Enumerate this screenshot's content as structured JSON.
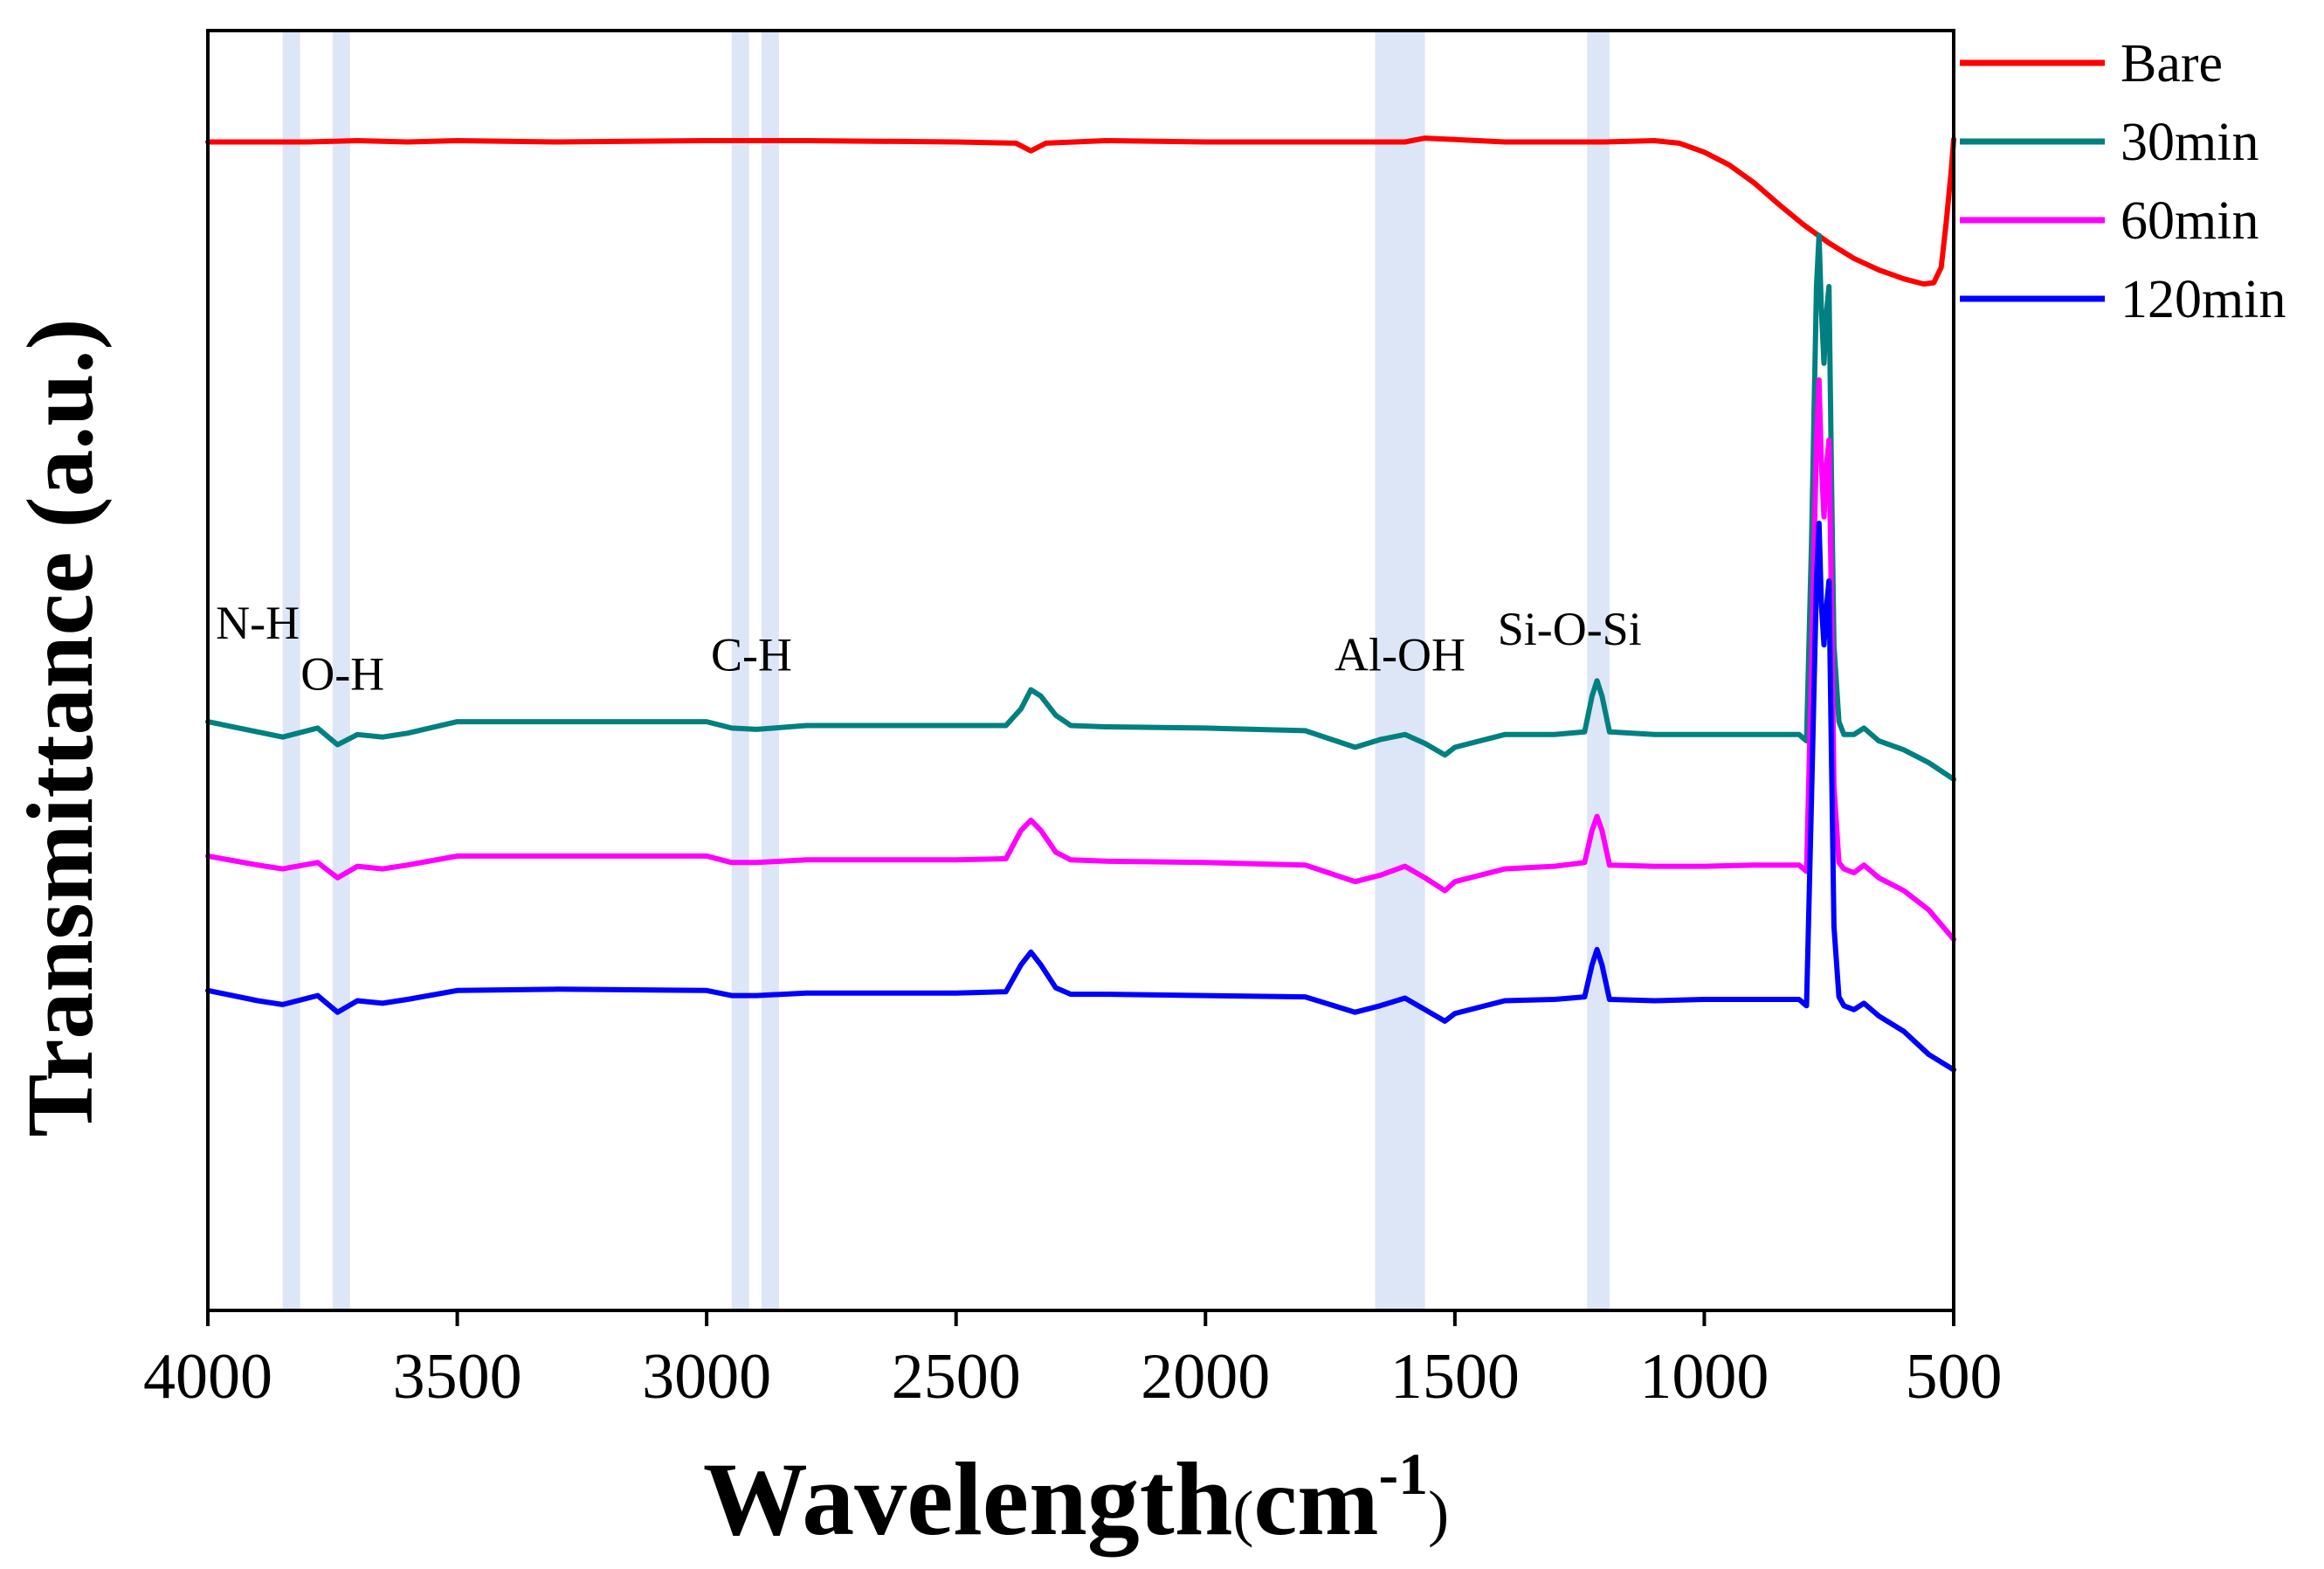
{
  "chart_data": {
    "type": "line",
    "title": "",
    "xlabel": "Wavelength",
    "xlabel_unit_open": "(",
    "xlabel_unit": "cm",
    "xlabel_unit_sup": "-1",
    "xlabel_unit_close": ")",
    "ylabel": "Transmittance (a.u.)",
    "xlim": [
      4000,
      500
    ],
    "ylim": [
      0,
      100
    ],
    "x_reversed": true,
    "y_ticks_shown": false,
    "grid": false,
    "legend_position": "top-right",
    "xticks": [
      {
        "value": 4000,
        "label": "4000"
      },
      {
        "value": 3500,
        "label": "3500"
      },
      {
        "value": 3000,
        "label": "3000"
      },
      {
        "value": 2500,
        "label": "2500"
      },
      {
        "value": 2000,
        "label": "2000"
      },
      {
        "value": 1500,
        "label": "1500"
      },
      {
        "value": 1000,
        "label": "1000"
      },
      {
        "value": 500,
        "label": "500"
      }
    ],
    "bands": [
      {
        "name": "N-H",
        "from": 3850,
        "to": 3815
      },
      {
        "name": "O-H",
        "from": 3750,
        "to": 3715
      },
      {
        "name": "C-H-1",
        "from": 2950,
        "to": 2915
      },
      {
        "name": "C-H-2",
        "from": 2890,
        "to": 2855
      },
      {
        "name": "Al-OH",
        "from": 1660,
        "to": 1560
      },
      {
        "name": "Si-O-Si",
        "from": 1235,
        "to": 1190
      }
    ],
    "annotations": [
      {
        "text": "N-H",
        "x": 3900,
        "y": 52.5
      },
      {
        "text": "O-H",
        "x": 3730,
        "y": 48.5
      },
      {
        "text": "C-H",
        "x": 2910,
        "y": 50.0
      },
      {
        "text": "Al-OH",
        "x": 1610,
        "y": 50.0
      },
      {
        "text": "Si-O-Si",
        "x": 1270,
        "y": 52.0
      }
    ],
    "series": [
      {
        "name": "Bare",
        "color": "#ff0000",
        "x": [
          4000,
          3900,
          3800,
          3700,
          3600,
          3500,
          3300,
          3000,
          2800,
          2500,
          2380,
          2350,
          2320,
          2200,
          2000,
          1800,
          1600,
          1560,
          1400,
          1200,
          1100,
          1050,
          1000,
          950,
          900,
          850,
          800,
          750,
          700,
          650,
          600,
          560,
          540,
          525,
          515,
          505,
          500
        ],
        "y": [
          91.3,
          91.3,
          91.3,
          91.4,
          91.3,
          91.4,
          91.3,
          91.4,
          91.4,
          91.3,
          91.2,
          90.6,
          91.2,
          91.4,
          91.3,
          91.3,
          91.3,
          91.6,
          91.3,
          91.3,
          91.4,
          91.2,
          90.5,
          89.5,
          88.1,
          86.4,
          84.8,
          83.4,
          82.2,
          81.3,
          80.6,
          80.2,
          80.3,
          81.5,
          85.0,
          89.0,
          91.5
        ]
      },
      {
        "name": "30min",
        "color": "#008080",
        "x": [
          4000,
          3900,
          3850,
          3780,
          3740,
          3700,
          3650,
          3600,
          3500,
          3300,
          3000,
          2950,
          2900,
          2800,
          2500,
          2400,
          2370,
          2350,
          2330,
          2300,
          2270,
          2200,
          2000,
          1800,
          1700,
          1650,
          1600,
          1560,
          1520,
          1500,
          1400,
          1300,
          1240,
          1225,
          1215,
          1205,
          1190,
          1100,
          1000,
          900,
          810,
          795,
          785,
          775,
          770,
          765,
          760,
          755,
          750,
          745,
          740,
          730,
          720,
          700,
          680,
          650,
          600,
          550,
          500
        ],
        "y": [
          46.0,
          45.2,
          44.8,
          45.5,
          44.2,
          45.0,
          44.8,
          45.1,
          46.0,
          46.0,
          46.0,
          45.5,
          45.4,
          45.7,
          45.7,
          45.7,
          47.0,
          48.5,
          48.0,
          46.5,
          45.7,
          45.6,
          45.5,
          45.3,
          44.0,
          44.6,
          45.0,
          44.3,
          43.4,
          44.0,
          45.0,
          45.0,
          45.2,
          48.0,
          49.2,
          48.0,
          45.2,
          45.0,
          45.0,
          45.0,
          45.0,
          44.5,
          60.0,
          80.0,
          84.0,
          78.0,
          74.0,
          78.0,
          80.0,
          65.0,
          52.0,
          46.0,
          45.0,
          45.0,
          45.5,
          44.5,
          43.8,
          42.8,
          41.5
        ]
      },
      {
        "name": "60min",
        "color": "#ff00ff",
        "x": [
          4000,
          3900,
          3850,
          3780,
          3740,
          3700,
          3650,
          3600,
          3500,
          3300,
          3000,
          2950,
          2900,
          2800,
          2500,
          2400,
          2370,
          2350,
          2330,
          2300,
          2270,
          2200,
          2000,
          1800,
          1700,
          1650,
          1600,
          1560,
          1520,
          1500,
          1400,
          1300,
          1240,
          1225,
          1215,
          1205,
          1190,
          1100,
          1000,
          900,
          810,
          795,
          785,
          775,
          770,
          765,
          760,
          755,
          750,
          745,
          740,
          730,
          720,
          700,
          680,
          650,
          600,
          550,
          500
        ],
        "y": [
          35.5,
          34.8,
          34.5,
          35.0,
          33.8,
          34.7,
          34.5,
          34.8,
          35.5,
          35.5,
          35.5,
          35.0,
          35.0,
          35.2,
          35.2,
          35.3,
          37.5,
          38.3,
          37.5,
          35.8,
          35.2,
          35.1,
          35.0,
          34.8,
          33.5,
          34.0,
          34.7,
          33.8,
          32.8,
          33.5,
          34.5,
          34.7,
          35.0,
          37.5,
          38.6,
          37.5,
          34.8,
          34.7,
          34.7,
          34.8,
          34.8,
          34.3,
          50.0,
          68.0,
          72.7,
          66.0,
          62.0,
          66.0,
          68.0,
          55.0,
          41.0,
          35.0,
          34.5,
          34.2,
          34.8,
          33.8,
          32.8,
          31.3,
          29.0
        ]
      },
      {
        "name": "120min",
        "color": "#0000ff",
        "x": [
          4000,
          3900,
          3850,
          3780,
          3740,
          3700,
          3650,
          3600,
          3500,
          3300,
          3000,
          2950,
          2900,
          2800,
          2500,
          2400,
          2370,
          2350,
          2330,
          2300,
          2270,
          2200,
          2000,
          1800,
          1700,
          1650,
          1600,
          1560,
          1520,
          1500,
          1400,
          1300,
          1240,
          1225,
          1215,
          1205,
          1190,
          1100,
          1000,
          900,
          810,
          795,
          785,
          775,
          770,
          765,
          760,
          755,
          750,
          745,
          740,
          730,
          720,
          700,
          680,
          650,
          600,
          550,
          500
        ],
        "y": [
          25.0,
          24.2,
          23.9,
          24.6,
          23.3,
          24.2,
          24.0,
          24.3,
          25.0,
          25.1,
          25.0,
          24.6,
          24.6,
          24.8,
          24.8,
          24.9,
          27.0,
          28.0,
          27.0,
          25.2,
          24.7,
          24.7,
          24.6,
          24.5,
          23.3,
          23.8,
          24.4,
          23.5,
          22.6,
          23.2,
          24.2,
          24.3,
          24.5,
          27.0,
          28.2,
          27.0,
          24.3,
          24.2,
          24.3,
          24.3,
          24.3,
          23.8,
          40.0,
          57.0,
          61.5,
          55.0,
          52.0,
          55.0,
          57.0,
          43.0,
          30.0,
          24.5,
          23.8,
          23.5,
          24.0,
          23.0,
          21.8,
          20.0,
          18.8
        ]
      }
    ]
  }
}
